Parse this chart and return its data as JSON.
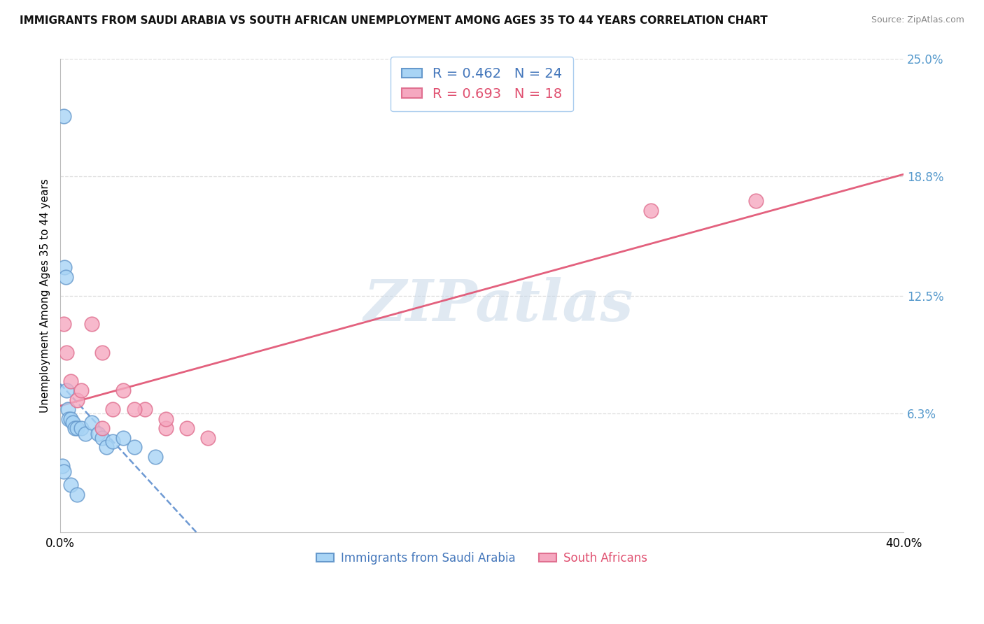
{
  "title": "IMMIGRANTS FROM SAUDI ARABIA VS SOUTH AFRICAN UNEMPLOYMENT AMONG AGES 35 TO 44 YEARS CORRELATION CHART",
  "source": "Source: ZipAtlas.com",
  "ylabel": "Unemployment Among Ages 35 to 44 years",
  "xlim": [
    0,
    40
  ],
  "ylim": [
    0,
    25
  ],
  "ytick_labels": [
    "6.3%",
    "12.5%",
    "18.8%",
    "25.0%"
  ],
  "ytick_values": [
    6.3,
    12.5,
    18.8,
    25.0
  ],
  "blue_R": 0.462,
  "blue_N": 24,
  "pink_R": 0.693,
  "pink_N": 18,
  "blue_label": "Immigrants from Saudi Arabia",
  "pink_label": "South Africans",
  "blue_color": "#A8D4F5",
  "pink_color": "#F5A8C0",
  "blue_edge_color": "#6699CC",
  "pink_edge_color": "#E07090",
  "blue_scatter_x": [
    0.15,
    0.2,
    0.25,
    0.3,
    0.35,
    0.4,
    0.5,
    0.6,
    0.7,
    0.8,
    1.0,
    1.2,
    1.5,
    1.8,
    2.0,
    2.2,
    2.5,
    3.0,
    3.5,
    4.5,
    0.1,
    0.15,
    0.5,
    0.8
  ],
  "blue_scatter_y": [
    22.0,
    14.0,
    13.5,
    7.5,
    6.5,
    6.0,
    6.0,
    5.8,
    5.5,
    5.5,
    5.5,
    5.2,
    5.8,
    5.2,
    5.0,
    4.5,
    4.8,
    5.0,
    4.5,
    4.0,
    3.5,
    3.2,
    2.5,
    2.0
  ],
  "pink_scatter_x": [
    0.15,
    0.3,
    0.5,
    0.8,
    1.0,
    1.5,
    2.0,
    2.5,
    3.0,
    4.0,
    5.0,
    7.0,
    2.0,
    3.5,
    5.0,
    6.0,
    28.0,
    33.0
  ],
  "pink_scatter_y": [
    11.0,
    9.5,
    8.0,
    7.0,
    7.5,
    11.0,
    9.5,
    6.5,
    7.5,
    6.5,
    5.5,
    5.0,
    5.5,
    6.5,
    6.0,
    5.5,
    17.0,
    17.5
  ],
  "watermark_text": "ZIPatlas",
  "background_color": "#FFFFFF",
  "grid_color": "#DDDDDD",
  "blue_line_color": "#5588CC",
  "pink_line_color": "#E05070"
}
